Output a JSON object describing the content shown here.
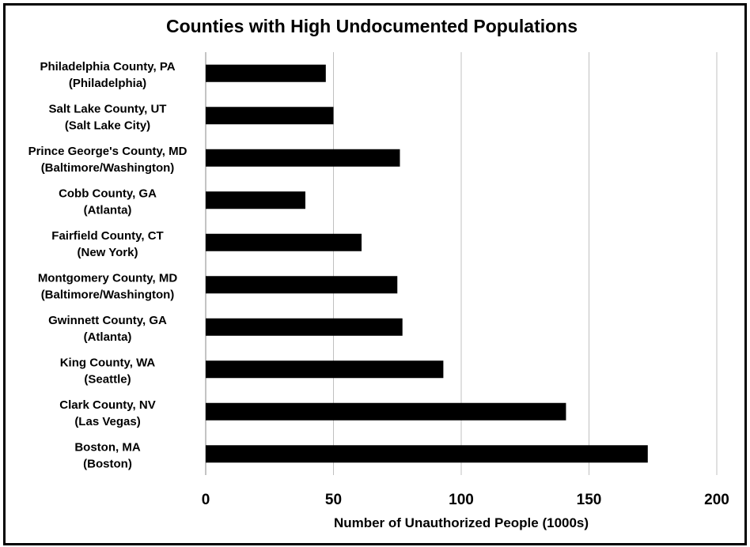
{
  "chart_data": {
    "type": "bar",
    "orientation": "horizontal",
    "title": "Counties with High Undocumented Populations",
    "xlabel": "Number of Unauthorized People (1000s)",
    "ylabel": "",
    "xlim": [
      0,
      200
    ],
    "xticks": [
      0,
      50,
      100,
      150,
      200
    ],
    "grid": "vertical",
    "legend": "none",
    "bar_color": "#000000",
    "categories": [
      {
        "line1": "Philadelphia County, PA",
        "line2": "(Philadelphia)"
      },
      {
        "line1": "Salt Lake County, UT",
        "line2": "(Salt Lake City)"
      },
      {
        "line1": "Prince George's County, MD",
        "line2": "(Baltimore/Washington)"
      },
      {
        "line1": "Cobb County, GA",
        "line2": "(Atlanta)"
      },
      {
        "line1": "Fairfield County, CT",
        "line2": "(New York)"
      },
      {
        "line1": "Montgomery County, MD",
        "line2": "(Baltimore/Washington)"
      },
      {
        "line1": "Gwinnett County, GA",
        "line2": "(Atlanta)"
      },
      {
        "line1": "King County, WA",
        "line2": "(Seattle)"
      },
      {
        "line1": "Clark County, NV",
        "line2": "(Las Vegas)"
      },
      {
        "line1": "Boston, MA",
        "line2": "(Boston)"
      }
    ],
    "values": [
      47,
      50,
      76,
      39,
      61,
      75,
      77,
      93,
      141,
      173
    ]
  }
}
